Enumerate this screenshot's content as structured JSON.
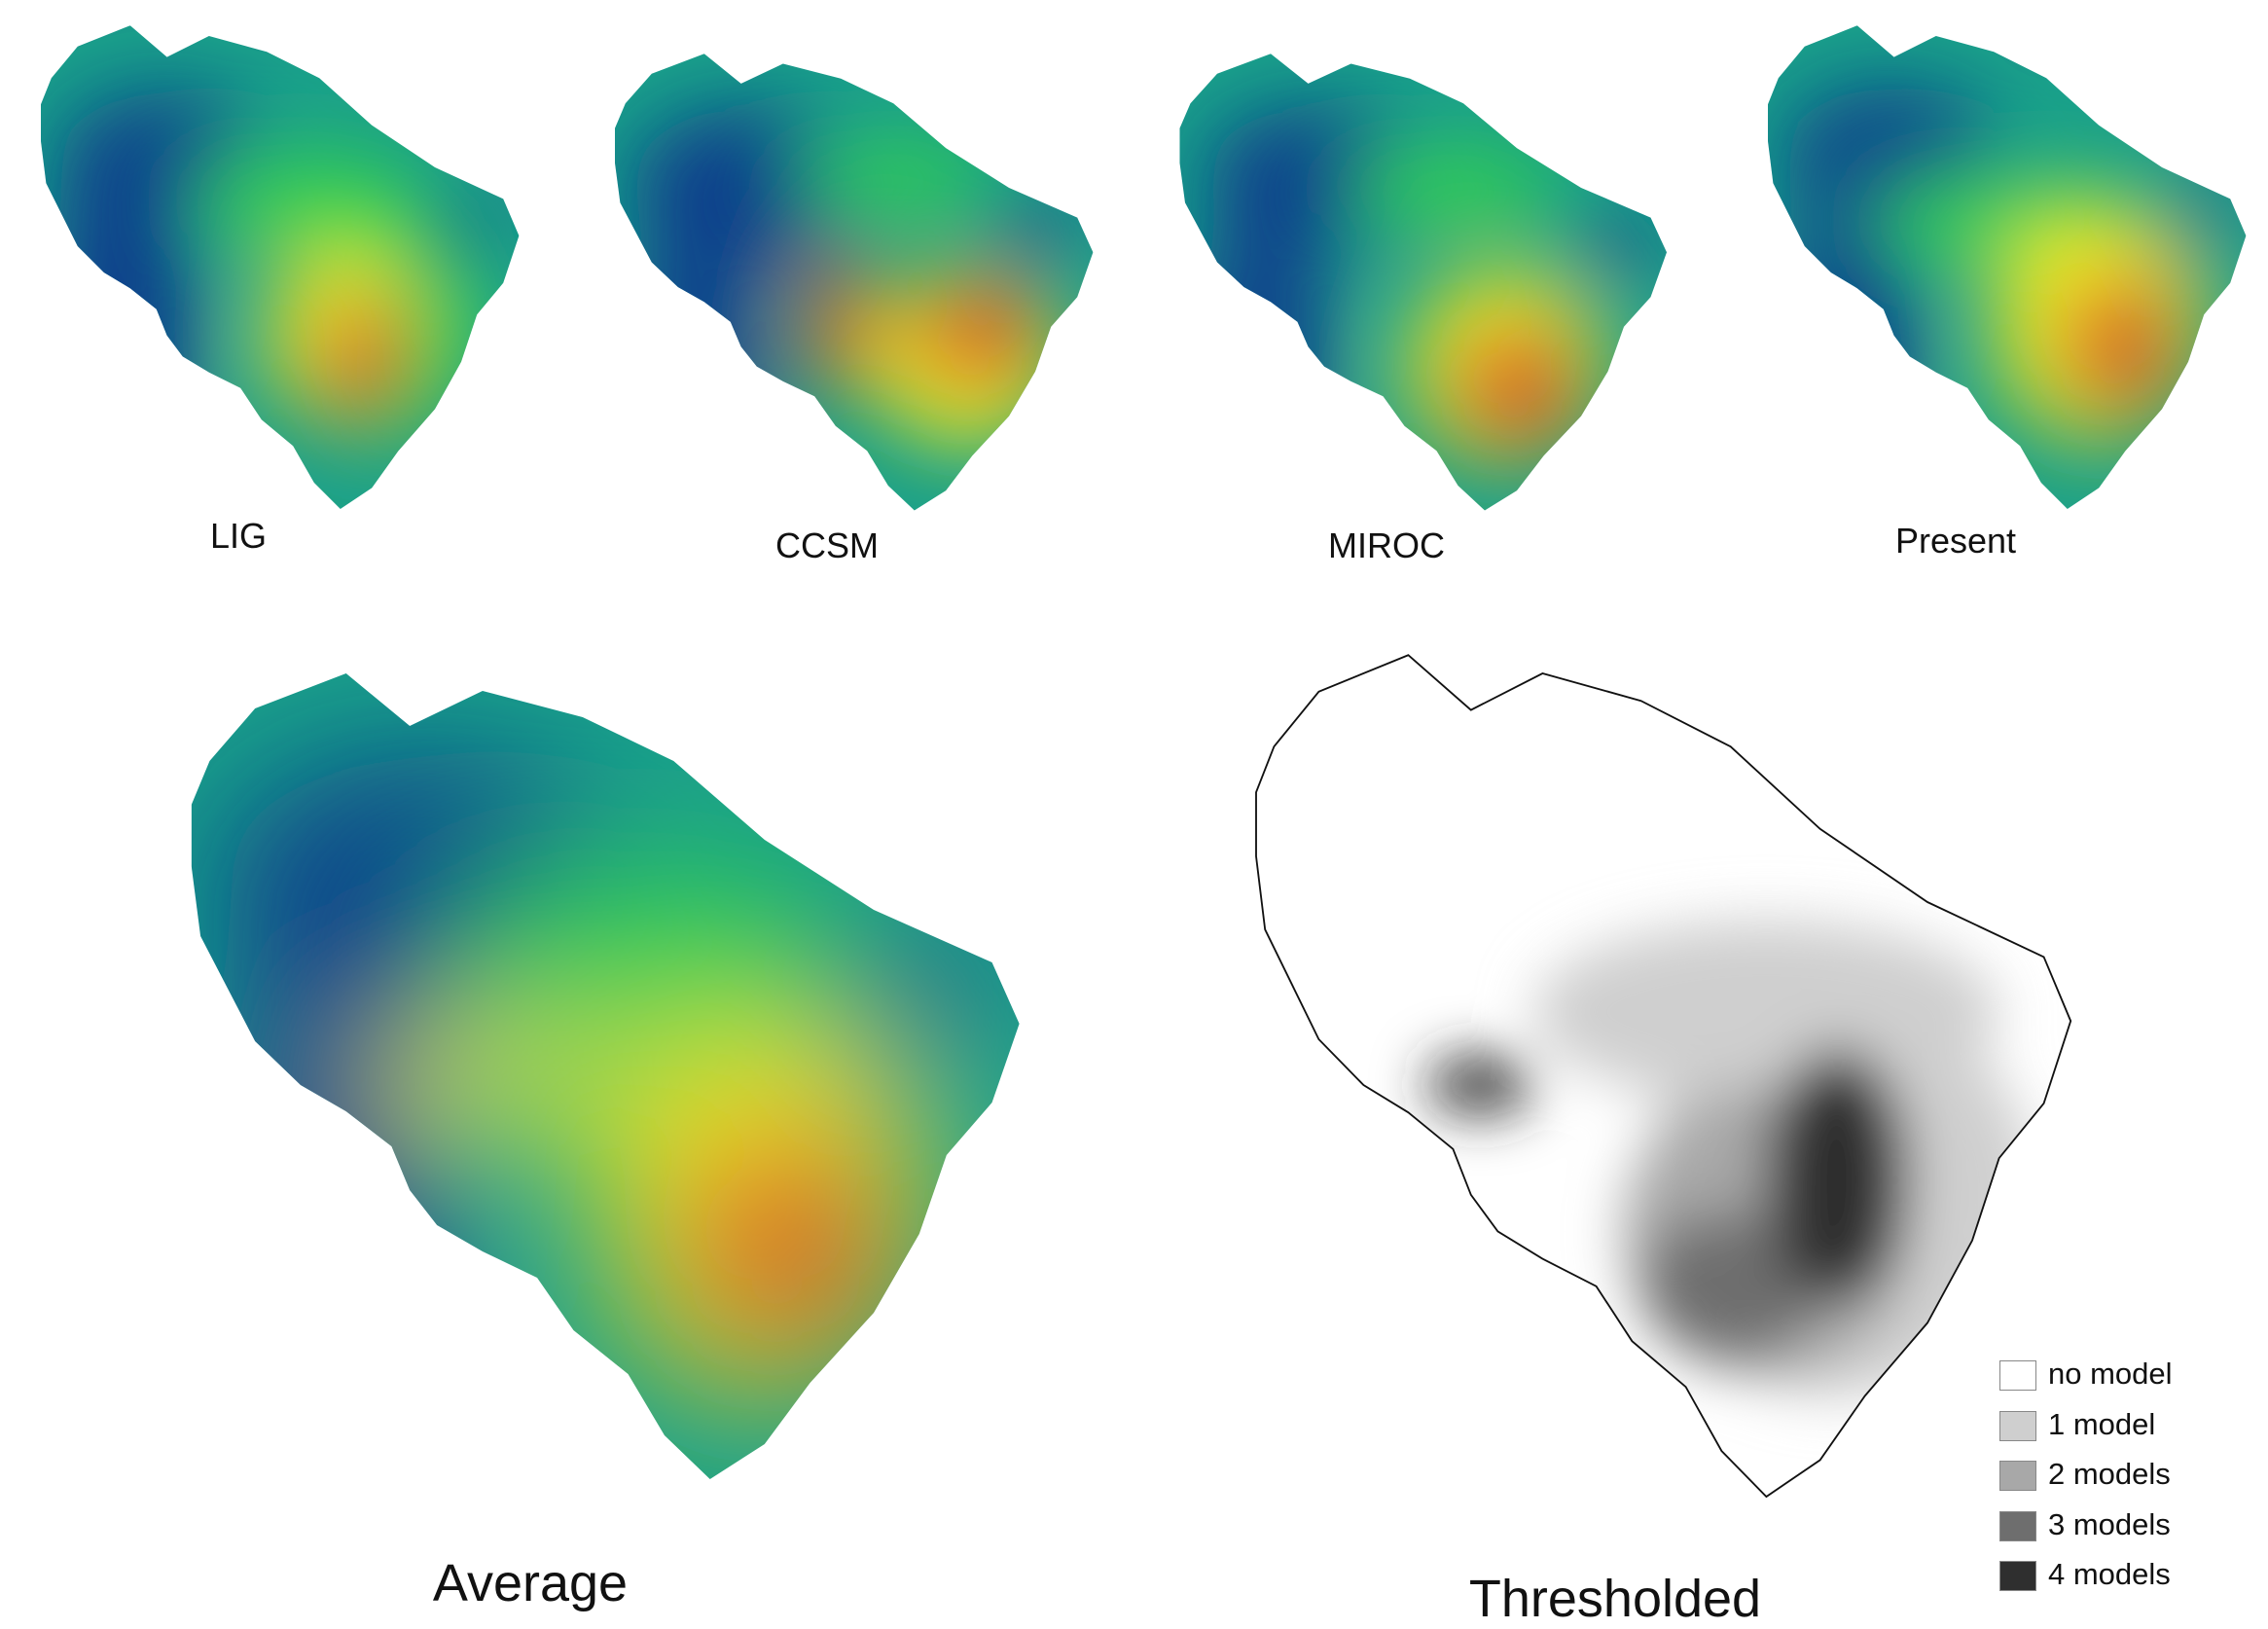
{
  "figure": {
    "colors": {
      "low": "#0a3d8c",
      "mid_low": "#1aa08a",
      "mid": "#37d64a",
      "mid_high": "#f4f21a",
      "high": "#d45a2c",
      "ocean": "#ffffff",
      "border": "#111111"
    }
  },
  "panels": [
    {
      "id": "lig",
      "label": "LIG"
    },
    {
      "id": "ccsm",
      "label": "CCSM"
    },
    {
      "id": "miroc",
      "label": "MIROC"
    },
    {
      "id": "present",
      "label": "Present"
    }
  ],
  "average": {
    "label": "Average"
  },
  "thresholded": {
    "label": "Thresholded",
    "legend": [
      {
        "label": "no model",
        "color": "#ffffff"
      },
      {
        "label": "1 model",
        "color": "#cfcfcf"
      },
      {
        "label": "2 models",
        "color": "#a8a8a8"
      },
      {
        "label": "3 models",
        "color": "#6e6e6e"
      },
      {
        "label": "4 models",
        "color": "#2f2f2f"
      }
    ]
  }
}
